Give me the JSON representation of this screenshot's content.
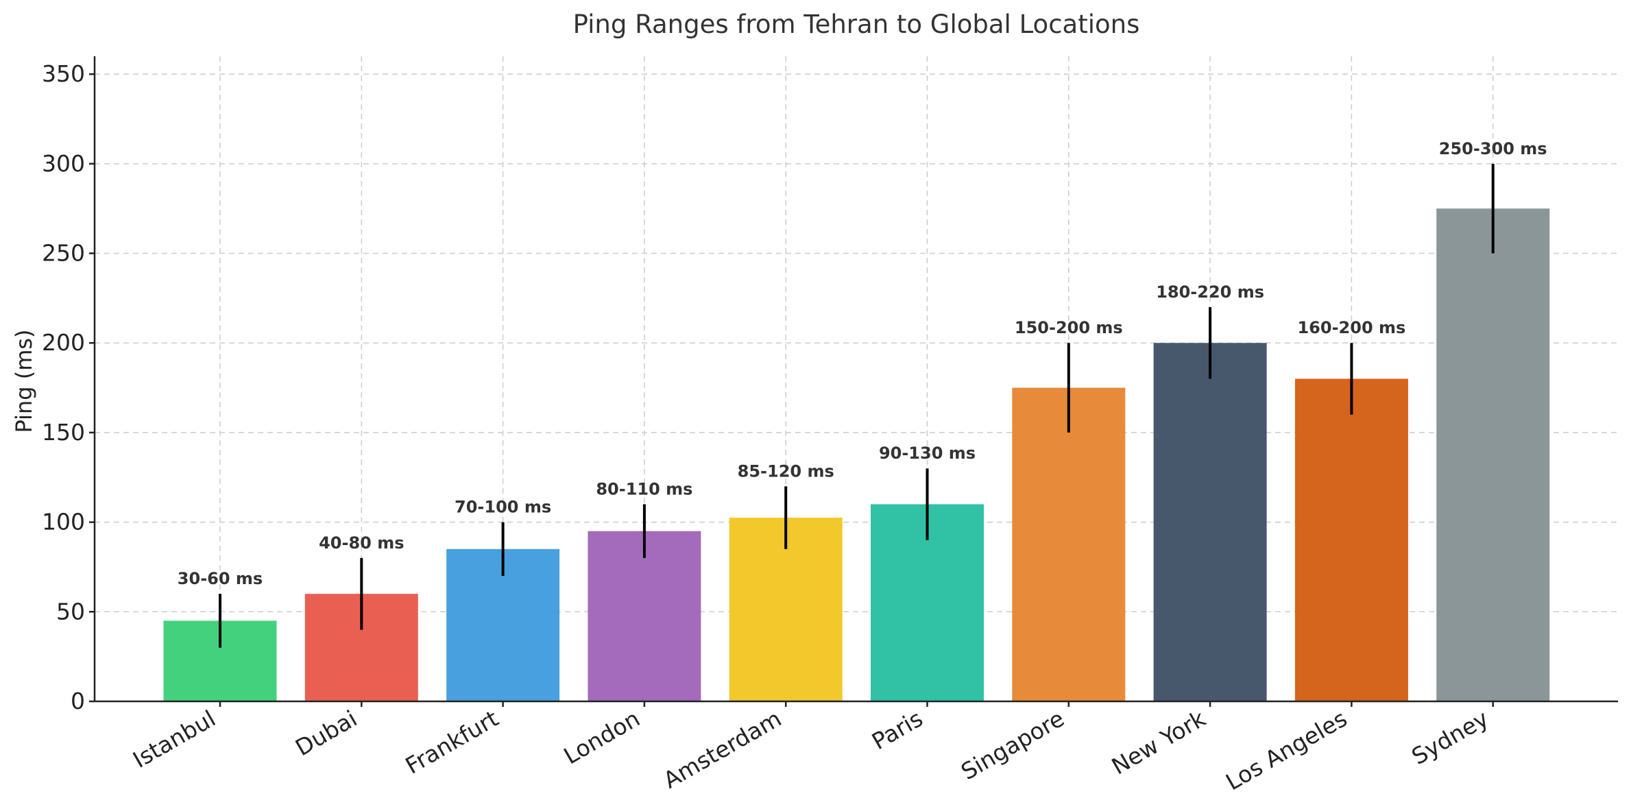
{
  "chart_data": {
    "type": "bar",
    "title": "Ping Ranges from Tehran to Global Locations",
    "xlabel": "",
    "ylabel": "Ping (ms)",
    "ylim": [
      0,
      360
    ],
    "yticks": [
      0,
      50,
      100,
      150,
      200,
      250,
      300,
      350
    ],
    "grid": true,
    "categories": [
      "Istanbul",
      "Dubai",
      "Frankfurt",
      "London",
      "Amsterdam",
      "Paris",
      "Singapore",
      "New York",
      "Los Angeles",
      "Sydney"
    ],
    "values": [
      45,
      60,
      85,
      95,
      102.5,
      110,
      175,
      200,
      180,
      275
    ],
    "range_low": [
      30,
      40,
      70,
      80,
      85,
      90,
      150,
      180,
      160,
      250
    ],
    "range_high": [
      60,
      80,
      100,
      110,
      120,
      130,
      200,
      220,
      200,
      300
    ],
    "range_labels": [
      "30-60 ms",
      "40-80 ms",
      "70-100 ms",
      "80-110 ms",
      "85-120 ms",
      "90-130 ms",
      "150-200 ms",
      "180-220 ms",
      "160-200 ms",
      "250-300 ms"
    ],
    "colors": [
      "#44d17d",
      "#e96052",
      "#48a1de",
      "#a46bbd",
      "#f2c82c",
      "#31c2a6",
      "#e78a3a",
      "#47586d",
      "#d5641c",
      "#8a9697"
    ]
  }
}
